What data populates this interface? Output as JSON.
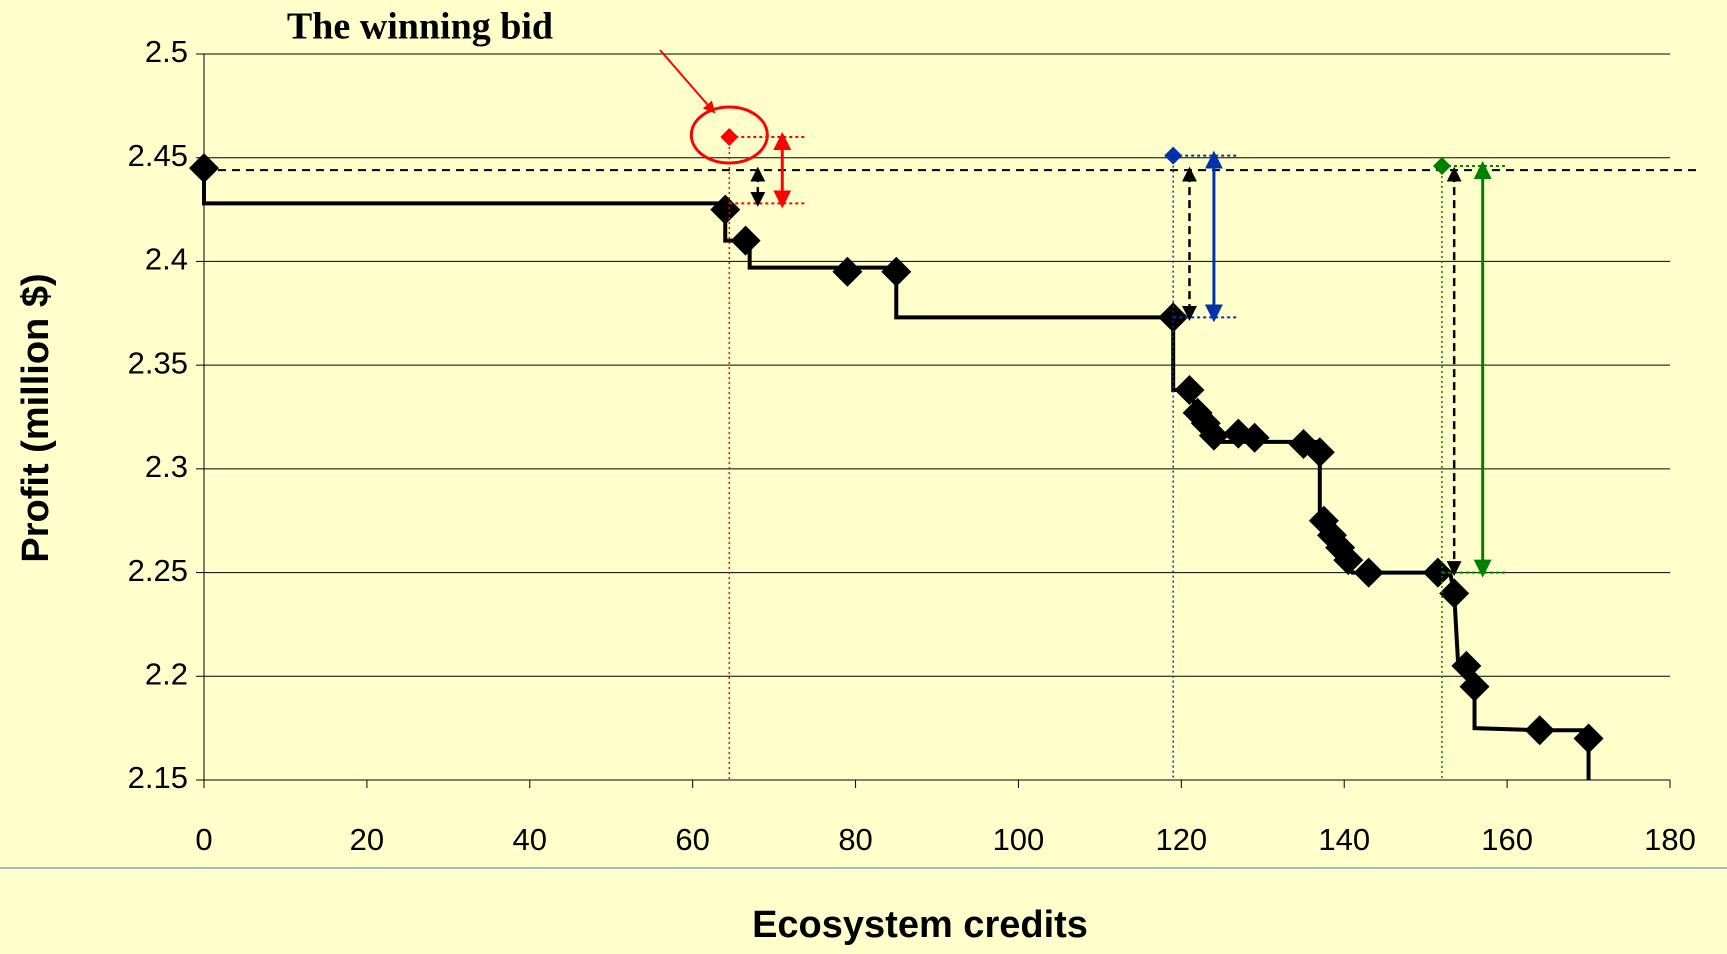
{
  "chart_data": {
    "type": "step",
    "annotation": "The winning bid",
    "xlabel": "Ecosystem credits",
    "ylabel": "Profit (million $)",
    "xlim": [
      0,
      180
    ],
    "xticks": [
      0,
      20,
      40,
      60,
      80,
      100,
      120,
      140,
      160,
      180
    ],
    "ylim": [
      2.15,
      2.5
    ],
    "yticks": [
      2.15,
      2.2,
      2.25,
      2.3,
      2.35,
      2.4,
      2.45,
      2.5
    ],
    "grid": true,
    "reference_line": 2.444,
    "step_line": {
      "color": "#000000",
      "x": [
        0,
        0,
        64,
        64,
        67,
        67,
        85,
        85,
        119,
        119,
        121,
        122,
        124,
        124,
        137,
        137,
        138,
        140,
        141,
        153,
        153.5,
        154,
        156,
        156,
        164,
        170,
        170
      ],
      "y": [
        2.445,
        2.428,
        2.428,
        2.41,
        2.41,
        2.397,
        2.397,
        2.373,
        2.373,
        2.338,
        2.338,
        2.327,
        2.316,
        2.313,
        2.313,
        2.275,
        2.268,
        2.256,
        2.25,
        2.25,
        2.24,
        2.205,
        2.195,
        2.175,
        2.174,
        2.174,
        2.15
      ]
    },
    "points": {
      "color": "#000000",
      "x": [
        0,
        64,
        66.5,
        79,
        85,
        119,
        121,
        122,
        123,
        124,
        127,
        129,
        135,
        137,
        137.5,
        138.5,
        139.5,
        140.5,
        143,
        151.5,
        153.5,
        155,
        156,
        164,
        170
      ],
      "y": [
        2.445,
        2.425,
        2.41,
        2.395,
        2.395,
        2.373,
        2.338,
        2.327,
        2.322,
        2.316,
        2.317,
        2.315,
        2.312,
        2.308,
        2.275,
        2.268,
        2.262,
        2.256,
        2.25,
        2.25,
        2.24,
        2.205,
        2.195,
        2.174,
        2.17
      ]
    },
    "bids": [
      {
        "color": "#ff0000",
        "x": 64.5,
        "y": 2.46,
        "base": 2.428
      },
      {
        "color": "#0033aa",
        "x": 119,
        "y": 2.451,
        "base": 2.373
      },
      {
        "color": "#008000",
        "x": 152,
        "y": 2.446,
        "base": 2.25
      }
    ]
  }
}
